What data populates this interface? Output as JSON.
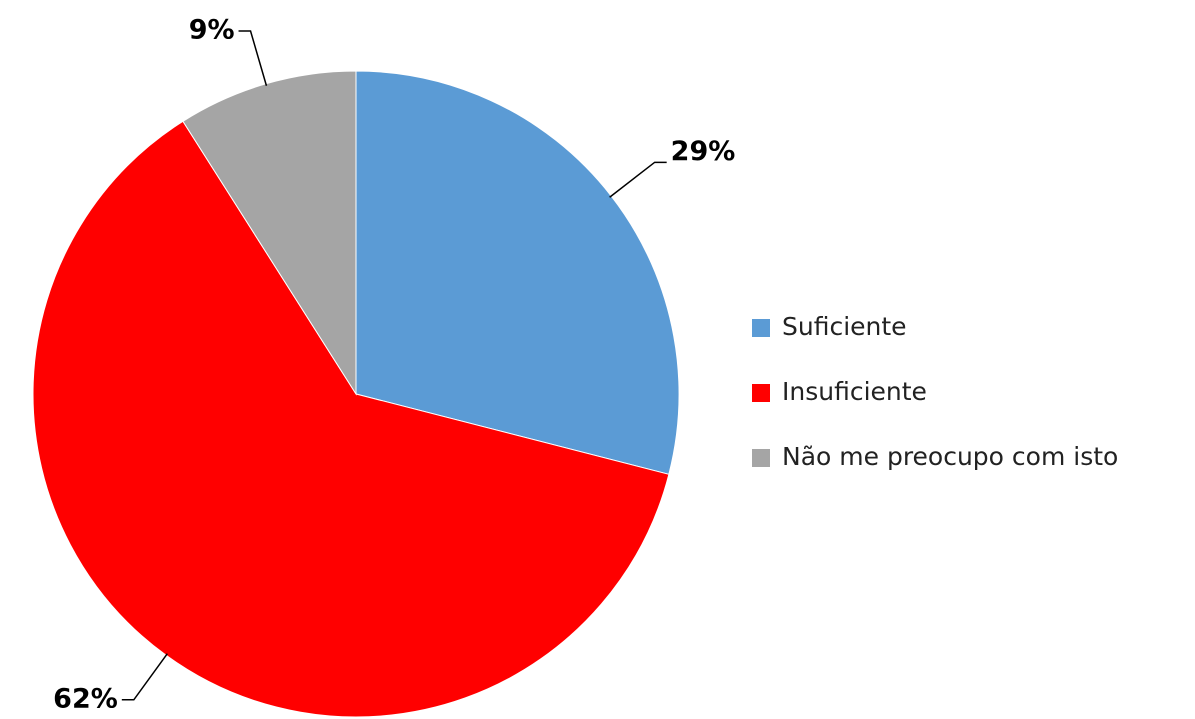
{
  "chart_data": {
    "type": "pie",
    "categories": [
      "Suficiente",
      "Insuficiente",
      "Não me preocupo com isto"
    ],
    "values": [
      29,
      62,
      9
    ],
    "value_labels": [
      "29%",
      "62%",
      "9%"
    ],
    "colors": [
      "#5b9bd5",
      "#ff0000",
      "#a5a5a5"
    ],
    "legend": "right"
  }
}
